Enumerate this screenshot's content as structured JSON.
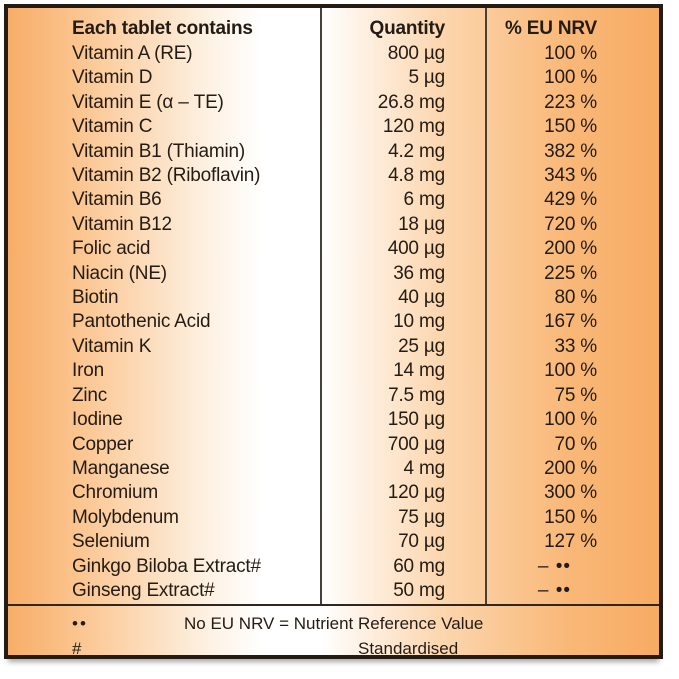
{
  "colors": {
    "panel_orange_edge": "#F7AD68",
    "panel_center_white": "#FFFFFF",
    "border_dark": "#241B13",
    "divider": "#45403A",
    "text": "#241C14"
  },
  "table": {
    "headers": {
      "name": "Each tablet contains",
      "quantity": "Quantity",
      "nrv": "% EU NRV"
    },
    "rows": [
      {
        "name": "Vitamin A (RE)",
        "quantity": "800 µg",
        "nrv": "100 %"
      },
      {
        "name": "Vitamin D",
        "quantity": "5 µg",
        "nrv": "100 %"
      },
      {
        "name": "Vitamin E (α – TE)",
        "quantity": "26.8 mg",
        "nrv": "223 %"
      },
      {
        "name": "Vitamin C",
        "quantity": "120 mg",
        "nrv": "150 %"
      },
      {
        "name": "Vitamin B1 (Thiamin)",
        "quantity": "4.2 mg",
        "nrv": "382 %"
      },
      {
        "name": "Vitamin B2 (Riboflavin)",
        "quantity": "4.8 mg",
        "nrv": "343 %"
      },
      {
        "name": "Vitamin B6",
        "quantity": "6 mg",
        "nrv": "429 %"
      },
      {
        "name": "Vitamin B12",
        "quantity": "18 µg",
        "nrv": "720 %"
      },
      {
        "name": "Folic acid",
        "quantity": "400 µg",
        "nrv": "200 %"
      },
      {
        "name": "Niacin (NE)",
        "quantity": "36 mg",
        "nrv": "225 %"
      },
      {
        "name": "Biotin",
        "quantity": "40 µg",
        "nrv": "80 %"
      },
      {
        "name": "Pantothenic Acid",
        "quantity": "10 mg",
        "nrv": "167 %"
      },
      {
        "name": "Vitamin K",
        "quantity": "25 µg",
        "nrv": "33 %"
      },
      {
        "name": "Iron",
        "quantity": "14 mg",
        "nrv": "100 %"
      },
      {
        "name": "Zinc",
        "quantity": "7.5 mg",
        "nrv": "75 %"
      },
      {
        "name": "Iodine",
        "quantity": "150 µg",
        "nrv": "100 %"
      },
      {
        "name": "Copper",
        "quantity": "700 µg",
        "nrv": "70 %"
      },
      {
        "name": "Manganese",
        "quantity": "4 mg",
        "nrv": "200 %"
      },
      {
        "name": "Chromium",
        "quantity": "120 µg",
        "nrv": "300 %"
      },
      {
        "name": "Molybdenum",
        "quantity": "75 µg",
        "nrv": "150 %"
      },
      {
        "name": "Selenium",
        "quantity": "70 µg",
        "nrv": "127 %"
      },
      {
        "name": "Ginkgo Biloba Extract#",
        "quantity": "60 mg",
        "nrv": "– ••"
      },
      {
        "name": "Ginseng Extract#",
        "quantity": "50 mg",
        "nrv": "– ••"
      }
    ]
  },
  "footnotes": [
    {
      "marker": "••",
      "text": "No EU NRV = Nutrient Reference Value"
    },
    {
      "marker": "#",
      "text": "Standardised"
    }
  ]
}
